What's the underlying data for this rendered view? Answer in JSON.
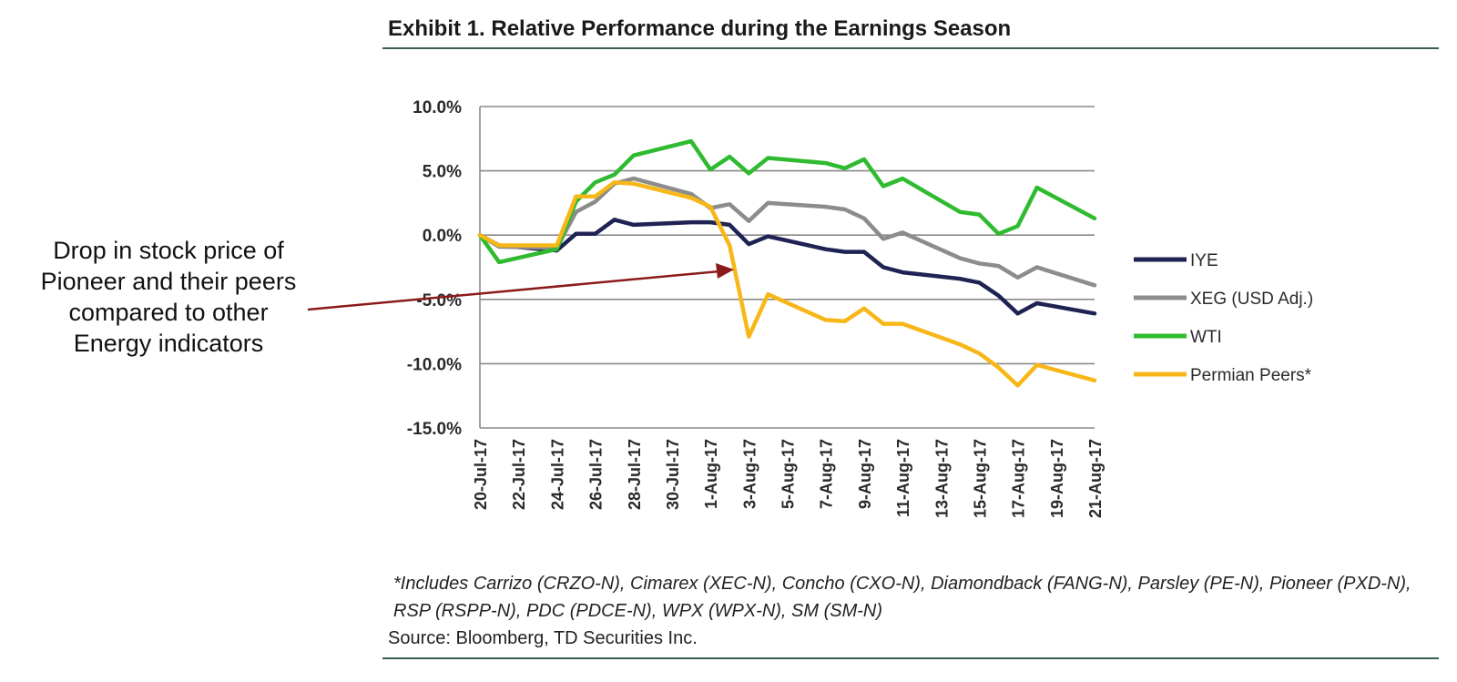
{
  "title": "Exhibit 1. Relative Performance during the Earnings Season",
  "callout": {
    "lines": [
      "Drop in stock price of",
      "Pioneer and their peers",
      "compared to other",
      "Energy indicators"
    ]
  },
  "footnote": "*Includes Carrizo (CRZO-N), Cimarex (XEC-N), Concho (CXO-N), Diamondback (FANG-N), Parsley (PE-N), Pioneer (PXD-N), RSP (RSPP-N), PDC (PDCE-N), WPX (WPX-N), SM (SM-N)",
  "source": "Source: Bloomberg, TD Securities Inc.",
  "colors": {
    "IYE": "#1f2353",
    "XEG": "#8c8c8c",
    "WTI": "#2fbb2f",
    "Permian": "#f7b718",
    "grid": "#8a8a8a",
    "arrow": "#8b1a1a"
  },
  "chart_data": {
    "type": "line",
    "y_tick_labels": [
      "10.0%",
      "5.0%",
      "0.0%",
      "-5.0%",
      "-10.0%",
      "-15.0%"
    ],
    "y_ticks": [
      10,
      5,
      0,
      -5,
      -10,
      -15
    ],
    "ylim": [
      -15,
      10
    ],
    "x_tick_labels": [
      "20-Jul-17",
      "22-Jul-17",
      "24-Jul-17",
      "26-Jul-17",
      "28-Jul-17",
      "30-Jul-17",
      "1-Aug-17",
      "3-Aug-17",
      "5-Aug-17",
      "7-Aug-17",
      "9-Aug-17",
      "11-Aug-17",
      "13-Aug-17",
      "15-Aug-17",
      "17-Aug-17",
      "19-Aug-17",
      "21-Aug-17"
    ],
    "xlim": [
      "2017-07-20",
      "2017-08-21"
    ],
    "grid": true,
    "legend_position": "right",
    "series": [
      {
        "name": "IYE",
        "color_key": "IYE",
        "points": [
          [
            "2017-07-20",
            0.0
          ],
          [
            "2017-07-21",
            -0.8
          ],
          [
            "2017-07-24",
            -1.2
          ],
          [
            "2017-07-25",
            0.1
          ],
          [
            "2017-07-26",
            0.1
          ],
          [
            "2017-07-27",
            1.2
          ],
          [
            "2017-07-28",
            0.8
          ],
          [
            "2017-07-31",
            1.0
          ],
          [
            "2017-08-01",
            1.0
          ],
          [
            "2017-08-02",
            0.8
          ],
          [
            "2017-08-03",
            -0.7
          ],
          [
            "2017-08-04",
            -0.1
          ],
          [
            "2017-08-07",
            -1.1
          ],
          [
            "2017-08-08",
            -1.3
          ],
          [
            "2017-08-09",
            -1.3
          ],
          [
            "2017-08-10",
            -2.5
          ],
          [
            "2017-08-11",
            -2.9
          ],
          [
            "2017-08-14",
            -3.4
          ],
          [
            "2017-08-15",
            -3.7
          ],
          [
            "2017-08-16",
            -4.7
          ],
          [
            "2017-08-17",
            -6.1
          ],
          [
            "2017-08-18",
            -5.3
          ],
          [
            "2017-08-21",
            -6.1
          ]
        ]
      },
      {
        "name": "XEG (USD Adj.)",
        "color_key": "XEG",
        "points": [
          [
            "2017-07-20",
            0.0
          ],
          [
            "2017-07-21",
            -0.9
          ],
          [
            "2017-07-24",
            -1.0
          ],
          [
            "2017-07-25",
            1.8
          ],
          [
            "2017-07-26",
            2.6
          ],
          [
            "2017-07-27",
            4.0
          ],
          [
            "2017-07-28",
            4.4
          ],
          [
            "2017-07-31",
            3.2
          ],
          [
            "2017-08-01",
            2.1
          ],
          [
            "2017-08-02",
            2.4
          ],
          [
            "2017-08-03",
            1.1
          ],
          [
            "2017-08-04",
            2.5
          ],
          [
            "2017-08-07",
            2.2
          ],
          [
            "2017-08-08",
            2.0
          ],
          [
            "2017-08-09",
            1.3
          ],
          [
            "2017-08-10",
            -0.3
          ],
          [
            "2017-08-11",
            0.2
          ],
          [
            "2017-08-14",
            -1.8
          ],
          [
            "2017-08-15",
            -2.2
          ],
          [
            "2017-08-16",
            -2.4
          ],
          [
            "2017-08-17",
            -3.3
          ],
          [
            "2017-08-18",
            -2.5
          ],
          [
            "2017-08-21",
            -3.9
          ]
        ]
      },
      {
        "name": "WTI",
        "color_key": "WTI",
        "points": [
          [
            "2017-07-20",
            0.0
          ],
          [
            "2017-07-21",
            -2.1
          ],
          [
            "2017-07-24",
            -1.1
          ],
          [
            "2017-07-25",
            2.6
          ],
          [
            "2017-07-26",
            4.1
          ],
          [
            "2017-07-27",
            4.7
          ],
          [
            "2017-07-28",
            6.2
          ],
          [
            "2017-07-31",
            7.3
          ],
          [
            "2017-08-01",
            5.1
          ],
          [
            "2017-08-02",
            6.1
          ],
          [
            "2017-08-03",
            4.8
          ],
          [
            "2017-08-04",
            6.0
          ],
          [
            "2017-08-07",
            5.6
          ],
          [
            "2017-08-08",
            5.2
          ],
          [
            "2017-08-09",
            5.9
          ],
          [
            "2017-08-10",
            3.8
          ],
          [
            "2017-08-11",
            4.4
          ],
          [
            "2017-08-14",
            1.8
          ],
          [
            "2017-08-15",
            1.6
          ],
          [
            "2017-08-16",
            0.1
          ],
          [
            "2017-08-17",
            0.7
          ],
          [
            "2017-08-18",
            3.7
          ],
          [
            "2017-08-21",
            1.3
          ]
        ]
      },
      {
        "name": "Permian Peers*",
        "color_key": "Permian",
        "points": [
          [
            "2017-07-20",
            0.0
          ],
          [
            "2017-07-21",
            -0.8
          ],
          [
            "2017-07-24",
            -0.8
          ],
          [
            "2017-07-25",
            3.0
          ],
          [
            "2017-07-26",
            3.0
          ],
          [
            "2017-07-27",
            4.1
          ],
          [
            "2017-07-28",
            4.0
          ],
          [
            "2017-07-31",
            2.9
          ],
          [
            "2017-08-01",
            2.2
          ],
          [
            "2017-08-02",
            -0.8
          ],
          [
            "2017-08-03",
            -7.9
          ],
          [
            "2017-08-04",
            -4.6
          ],
          [
            "2017-08-07",
            -6.6
          ],
          [
            "2017-08-08",
            -6.7
          ],
          [
            "2017-08-09",
            -5.7
          ],
          [
            "2017-08-10",
            -6.9
          ],
          [
            "2017-08-11",
            -6.9
          ],
          [
            "2017-08-14",
            -8.5
          ],
          [
            "2017-08-15",
            -9.2
          ],
          [
            "2017-08-16",
            -10.3
          ],
          [
            "2017-08-17",
            -11.7
          ],
          [
            "2017-08-18",
            -10.1
          ],
          [
            "2017-08-21",
            -11.3
          ]
        ]
      }
    ]
  }
}
